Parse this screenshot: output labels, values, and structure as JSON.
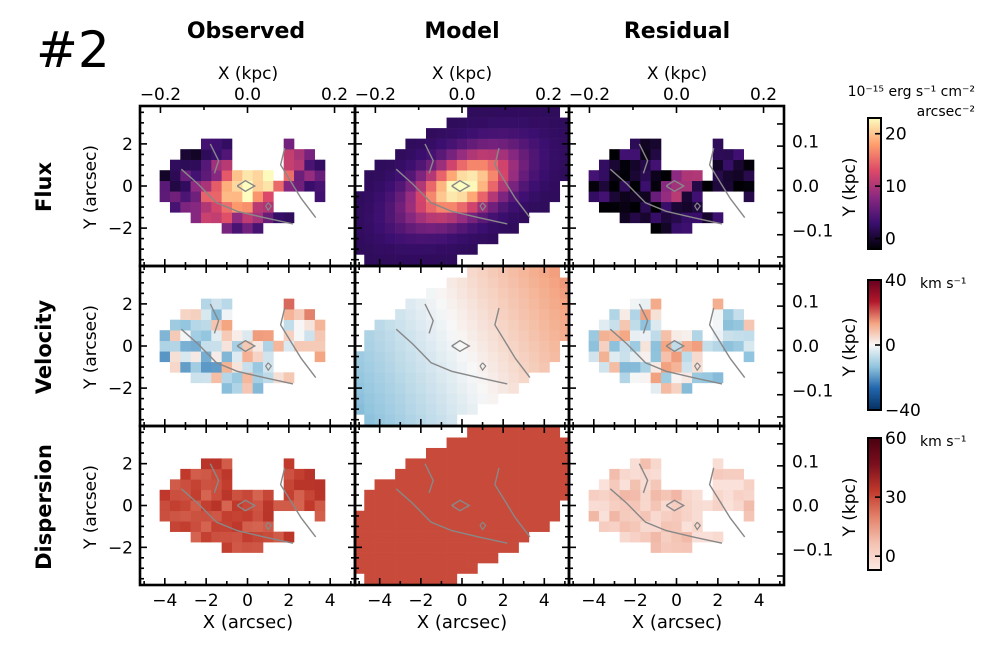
{
  "figure_label": "#2",
  "column_titles": [
    "Observed",
    "Model",
    "Residual"
  ],
  "row_titles": [
    "Flux",
    "Velocity",
    "Dispersion"
  ],
  "colorbars": [
    {
      "unit_line1": "10⁻¹⁵ erg s⁻¹ cm⁻²",
      "unit_line2": "arcsec⁻²",
      "ticks": [
        "0",
        "10",
        "20"
      ],
      "tick_values": [
        0,
        10,
        20
      ],
      "range": [
        -2,
        23
      ],
      "colors": [
        "#000004",
        "#3b0f70",
        "#8c2981",
        "#de4968",
        "#fe9f6d",
        "#fcfdbf"
      ]
    },
    {
      "unit_line1": "km s⁻¹",
      "unit_line2": "",
      "ticks": [
        "−40",
        "0",
        "40"
      ],
      "tick_values": [
        -40,
        0,
        40
      ],
      "range": [
        -40,
        40
      ],
      "colors": [
        "#053061",
        "#2166ac",
        "#92c5de",
        "#f7f7f7",
        "#f4a582",
        "#b2182b",
        "#67001f"
      ]
    },
    {
      "unit_line1": "km s⁻¹",
      "unit_line2": "",
      "ticks": [
        "0",
        "30",
        "60"
      ],
      "tick_values": [
        0,
        30,
        60
      ],
      "range": [
        -7,
        60
      ],
      "colors": [
        "#fbe9e4",
        "#f4c3b3",
        "#e3826a",
        "#c0392b",
        "#7a0f1e",
        "#4a0010"
      ]
    }
  ],
  "chart_data": {
    "type": "heatmap",
    "title": "",
    "xlabel": "X (arcsec)",
    "ylabel": "Y (arcsec)",
    "top_xlabel": "X (kpc)",
    "right_ylabel": "Y (kpc)",
    "xlim": [
      -5.2,
      5.2
    ],
    "ylim": [
      -3.8,
      3.8
    ],
    "x_ticks": [
      "−4",
      "−2",
      "0",
      "2",
      "4"
    ],
    "x_tick_values": [
      -4,
      -2,
      0,
      2,
      4
    ],
    "y_ticks": [
      "−2",
      "0",
      "2"
    ],
    "y_tick_values": [
      -2,
      0,
      2
    ],
    "top_ticks": [
      "−0.2",
      "0.0",
      "0.2"
    ],
    "top_tick_values": [
      -0.2,
      0.0,
      0.2
    ],
    "right_ticks": [
      "−0.1",
      "0.0",
      "0.1"
    ],
    "right_tick_values": [
      -0.1,
      0.0,
      0.1
    ],
    "kpc_per_arcsec": 0.0475,
    "panels": [
      {
        "row": "Flux",
        "col": "Observed",
        "map": "flux_observed"
      },
      {
        "row": "Flux",
        "col": "Model",
        "map": "flux_model"
      },
      {
        "row": "Flux",
        "col": "Residual",
        "map": "flux_residual"
      },
      {
        "row": "Velocity",
        "col": "Observed",
        "map": "velocity_observed"
      },
      {
        "row": "Velocity",
        "col": "Model",
        "map": "velocity_model"
      },
      {
        "row": "Velocity",
        "col": "Residual",
        "map": "velocity_residual"
      },
      {
        "row": "Dispersion",
        "col": "Observed",
        "map": "dispersion_observed"
      },
      {
        "row": "Dispersion",
        "col": "Model",
        "map": "dispersion_model"
      },
      {
        "row": "Dispersion",
        "col": "Residual",
        "map": "dispersion_residual"
      }
    ]
  }
}
